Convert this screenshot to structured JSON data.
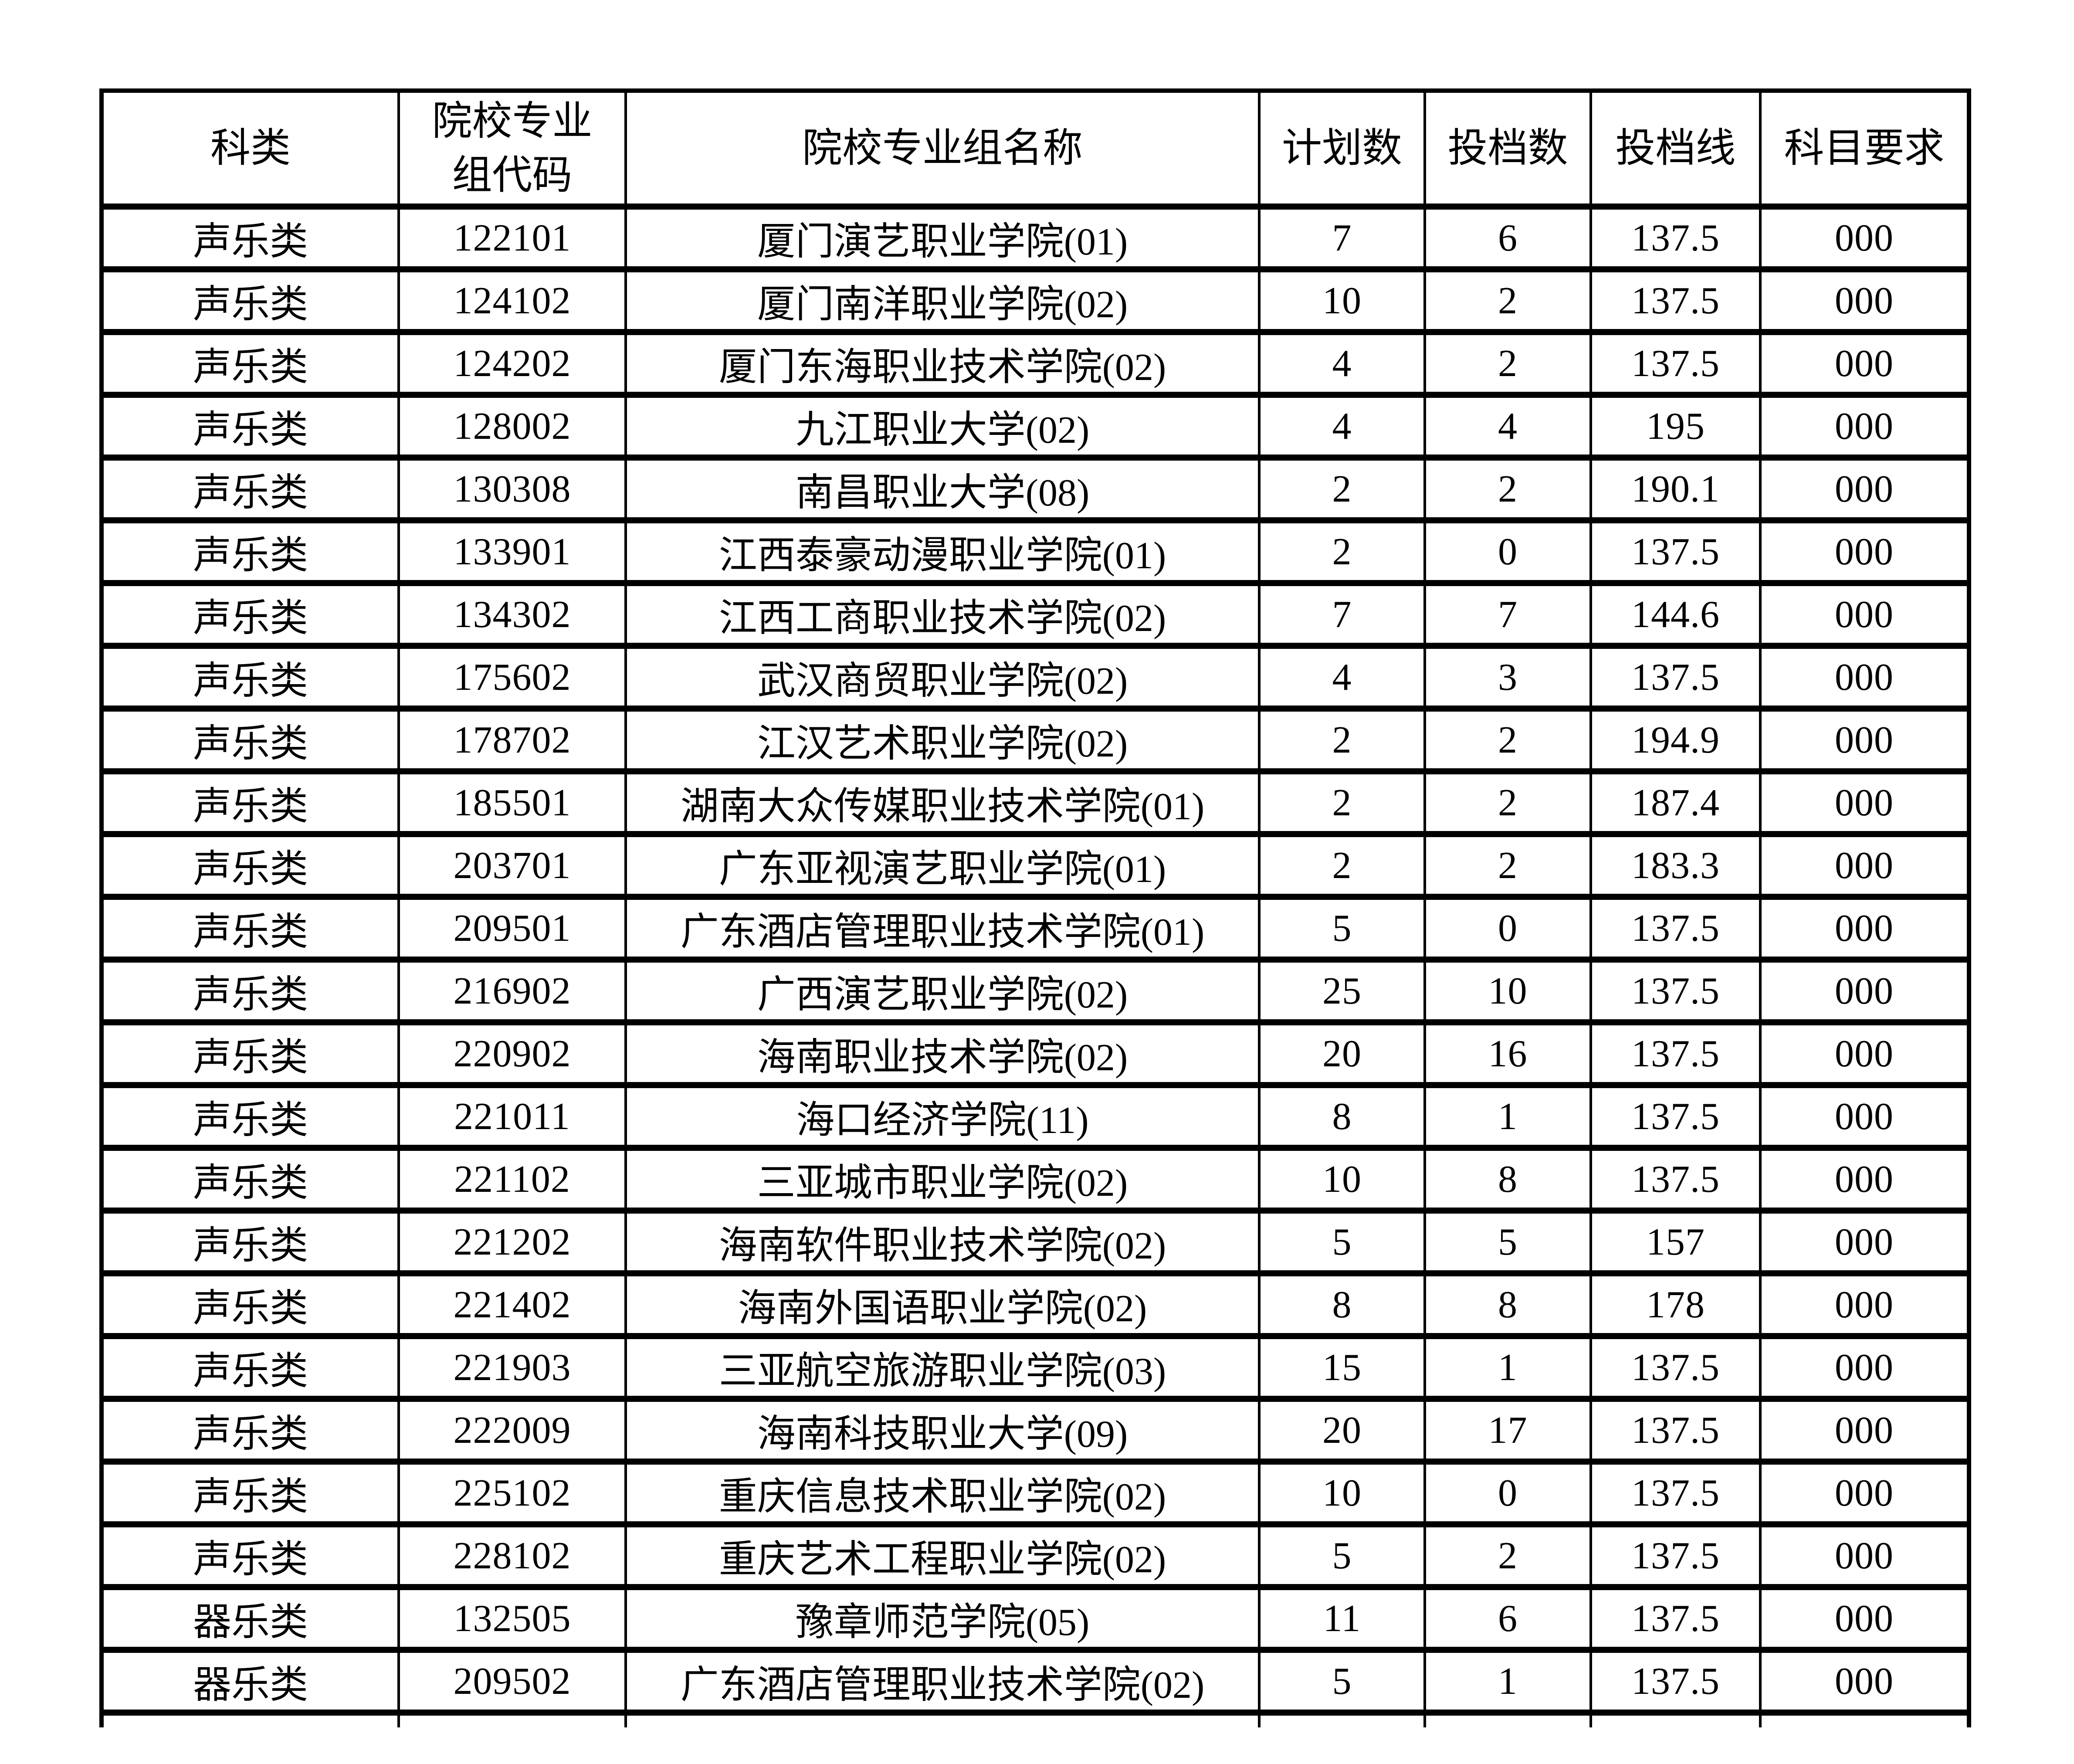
{
  "table": {
    "headers": [
      {
        "label": "科类"
      },
      {
        "label": "院校专业\n组代码"
      },
      {
        "label": "院校专业组名称"
      },
      {
        "label": "计划数"
      },
      {
        "label": "投档数"
      },
      {
        "label": "投档线"
      },
      {
        "label": "科目要求"
      }
    ],
    "rows": [
      {
        "category": "声乐类",
        "code": "122101",
        "name": "厦门演艺职业学院(01)",
        "plan": "7",
        "filed": "6",
        "line": "137.5",
        "req": "000"
      },
      {
        "category": "声乐类",
        "code": "124102",
        "name": "厦门南洋职业学院(02)",
        "plan": "10",
        "filed": "2",
        "line": "137.5",
        "req": "000"
      },
      {
        "category": "声乐类",
        "code": "124202",
        "name": "厦门东海职业技术学院(02)",
        "plan": "4",
        "filed": "2",
        "line": "137.5",
        "req": "000"
      },
      {
        "category": "声乐类",
        "code": "128002",
        "name": "九江职业大学(02)",
        "plan": "4",
        "filed": "4",
        "line": "195",
        "req": "000"
      },
      {
        "category": "声乐类",
        "code": "130308",
        "name": "南昌职业大学(08)",
        "plan": "2",
        "filed": "2",
        "line": "190.1",
        "req": "000"
      },
      {
        "category": "声乐类",
        "code": "133901",
        "name": "江西泰豪动漫职业学院(01)",
        "plan": "2",
        "filed": "0",
        "line": "137.5",
        "req": "000"
      },
      {
        "category": "声乐类",
        "code": "134302",
        "name": "江西工商职业技术学院(02)",
        "plan": "7",
        "filed": "7",
        "line": "144.6",
        "req": "000"
      },
      {
        "category": "声乐类",
        "code": "175602",
        "name": "武汉商贸职业学院(02)",
        "plan": "4",
        "filed": "3",
        "line": "137.5",
        "req": "000"
      },
      {
        "category": "声乐类",
        "code": "178702",
        "name": "江汉艺术职业学院(02)",
        "plan": "2",
        "filed": "2",
        "line": "194.9",
        "req": "000"
      },
      {
        "category": "声乐类",
        "code": "185501",
        "name": "湖南大众传媒职业技术学院(01)",
        "plan": "2",
        "filed": "2",
        "line": "187.4",
        "req": "000"
      },
      {
        "category": "声乐类",
        "code": "203701",
        "name": "广东亚视演艺职业学院(01)",
        "plan": "2",
        "filed": "2",
        "line": "183.3",
        "req": "000"
      },
      {
        "category": "声乐类",
        "code": "209501",
        "name": "广东酒店管理职业技术学院(01)",
        "plan": "5",
        "filed": "0",
        "line": "137.5",
        "req": "000"
      },
      {
        "category": "声乐类",
        "code": "216902",
        "name": "广西演艺职业学院(02)",
        "plan": "25",
        "filed": "10",
        "line": "137.5",
        "req": "000"
      },
      {
        "category": "声乐类",
        "code": "220902",
        "name": "海南职业技术学院(02)",
        "plan": "20",
        "filed": "16",
        "line": "137.5",
        "req": "000"
      },
      {
        "category": "声乐类",
        "code": "221011",
        "name": "海口经济学院(11)",
        "plan": "8",
        "filed": "1",
        "line": "137.5",
        "req": "000"
      },
      {
        "category": "声乐类",
        "code": "221102",
        "name": "三亚城市职业学院(02)",
        "plan": "10",
        "filed": "8",
        "line": "137.5",
        "req": "000"
      },
      {
        "category": "声乐类",
        "code": "221202",
        "name": "海南软件职业技术学院(02)",
        "plan": "5",
        "filed": "5",
        "line": "157",
        "req": "000"
      },
      {
        "category": "声乐类",
        "code": "221402",
        "name": "海南外国语职业学院(02)",
        "plan": "8",
        "filed": "8",
        "line": "178",
        "req": "000"
      },
      {
        "category": "声乐类",
        "code": "221903",
        "name": "三亚航空旅游职业学院(03)",
        "plan": "15",
        "filed": "1",
        "line": "137.5",
        "req": "000"
      },
      {
        "category": "声乐类",
        "code": "222009",
        "name": "海南科技职业大学(09)",
        "plan": "20",
        "filed": "17",
        "line": "137.5",
        "req": "000"
      },
      {
        "category": "声乐类",
        "code": "225102",
        "name": "重庆信息技术职业学院(02)",
        "plan": "10",
        "filed": "0",
        "line": "137.5",
        "req": "000"
      },
      {
        "category": "声乐类",
        "code": "228102",
        "name": "重庆艺术工程职业学院(02)",
        "plan": "5",
        "filed": "2",
        "line": "137.5",
        "req": "000"
      },
      {
        "category": "器乐类",
        "code": "132505",
        "name": "豫章师范学院(05)",
        "plan": "11",
        "filed": "6",
        "line": "137.5",
        "req": "000"
      },
      {
        "category": "器乐类",
        "code": "209502",
        "name": "广东酒店管理职业技术学院(02)",
        "plan": "5",
        "filed": "1",
        "line": "137.5",
        "req": "000"
      }
    ]
  }
}
